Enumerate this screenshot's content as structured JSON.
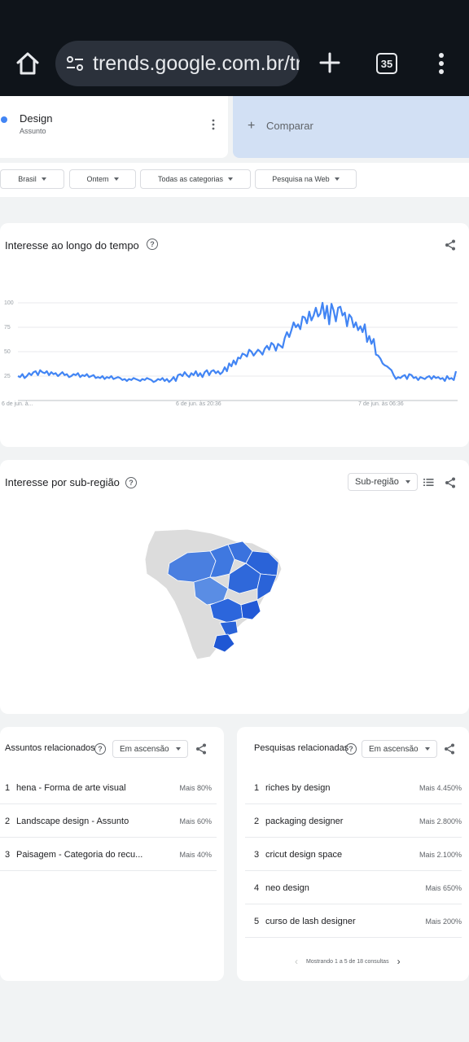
{
  "browser": {
    "url": "trends.google.com.br/tr",
    "tab_count": "35"
  },
  "term": {
    "name": "Design",
    "type": "Assunto",
    "color": "#4285f4"
  },
  "compare": {
    "label": "Comparar"
  },
  "filters": {
    "region": "Brasil",
    "time": "Ontem",
    "category": "Todas as categorias",
    "search_type": "Pesquisa na Web"
  },
  "interest_over_time": {
    "title": "Interesse ao longo do tempo"
  },
  "chart_data": {
    "type": "line",
    "title": "Interesse ao longo do tempo",
    "ylim": [
      0,
      100
    ],
    "yticks": [
      "100",
      "75",
      "50",
      "25"
    ],
    "xticks": [
      "6 de jun. à...",
      "6 de jun. às 20:36",
      "7 de jun. às 06:36"
    ],
    "grid": true,
    "series": [
      {
        "color": "#4285f4",
        "values": [
          25,
          24,
          27,
          23,
          25,
          28,
          26,
          29,
          30,
          26,
          31,
          29,
          28,
          30,
          26,
          29,
          27,
          28,
          25,
          27,
          29,
          26,
          27,
          24,
          25,
          27,
          26,
          28,
          24,
          26,
          25,
          27,
          24,
          25,
          26,
          23,
          24,
          23,
          25,
          22,
          24,
          23,
          25,
          22,
          23,
          24,
          23,
          21,
          22,
          20,
          22,
          21,
          23,
          22,
          21,
          20,
          22,
          21,
          23,
          22,
          21,
          19,
          20,
          22,
          21,
          23,
          20,
          22,
          19,
          21,
          24,
          20,
          26,
          27,
          25,
          29,
          26,
          24,
          28,
          26,
          30,
          25,
          28,
          24,
          29,
          31,
          26,
          30,
          31,
          28,
          30,
          27,
          29,
          34,
          30,
          38,
          35,
          41,
          37,
          44,
          43,
          48,
          47,
          45,
          52,
          50,
          46,
          49,
          52,
          50,
          47,
          53,
          56,
          52,
          59,
          57,
          51,
          58,
          56,
          54,
          64,
          70,
          65,
          72,
          80,
          75,
          78,
          73,
          86,
          85,
          79,
          91,
          82,
          87,
          95,
          86,
          89,
          100,
          84,
          97,
          78,
          99,
          92,
          81,
          95,
          96,
          87,
          90,
          76,
          88,
          85,
          75,
          80,
          72,
          76,
          70,
          78,
          60,
          66,
          58,
          63,
          47,
          46,
          43,
          38,
          36,
          35,
          33,
          31,
          26,
          22,
          24,
          23,
          25,
          26,
          22,
          27,
          26,
          23,
          24,
          21,
          24,
          23,
          22,
          24,
          25,
          22,
          25,
          23,
          24,
          22,
          23,
          20,
          25,
          22,
          23,
          21,
          30
        ]
      }
    ]
  },
  "subregion": {
    "title": "Interesse por sub-região",
    "select": "Sub-região"
  },
  "related_topics": {
    "title": "Assuntos relacionados",
    "filter": "Em ascensão",
    "items": [
      {
        "num": "1",
        "text": "hena - Forma de arte visual",
        "value": "Mais 80%"
      },
      {
        "num": "2",
        "text": "Landscape design - Assunto",
        "value": "Mais 60%"
      },
      {
        "num": "3",
        "text": "Paisagem - Categoria do recu...",
        "value": "Mais 40%"
      }
    ]
  },
  "related_queries": {
    "title": "Pesquisas relacionadas",
    "filter": "Em ascensão",
    "items": [
      {
        "num": "1",
        "text": "riches by design",
        "value": "Mais 4.450%"
      },
      {
        "num": "2",
        "text": "packaging designer",
        "value": "Mais 2.800%"
      },
      {
        "num": "3",
        "text": "cricut design space",
        "value": "Mais 2.100%"
      },
      {
        "num": "4",
        "text": "neo design",
        "value": "Mais 650%"
      },
      {
        "num": "5",
        "text": "curso de lash designer",
        "value": "Mais 200%"
      }
    ],
    "pager": "Mostrando 1 a 5 de 18 consultas"
  }
}
